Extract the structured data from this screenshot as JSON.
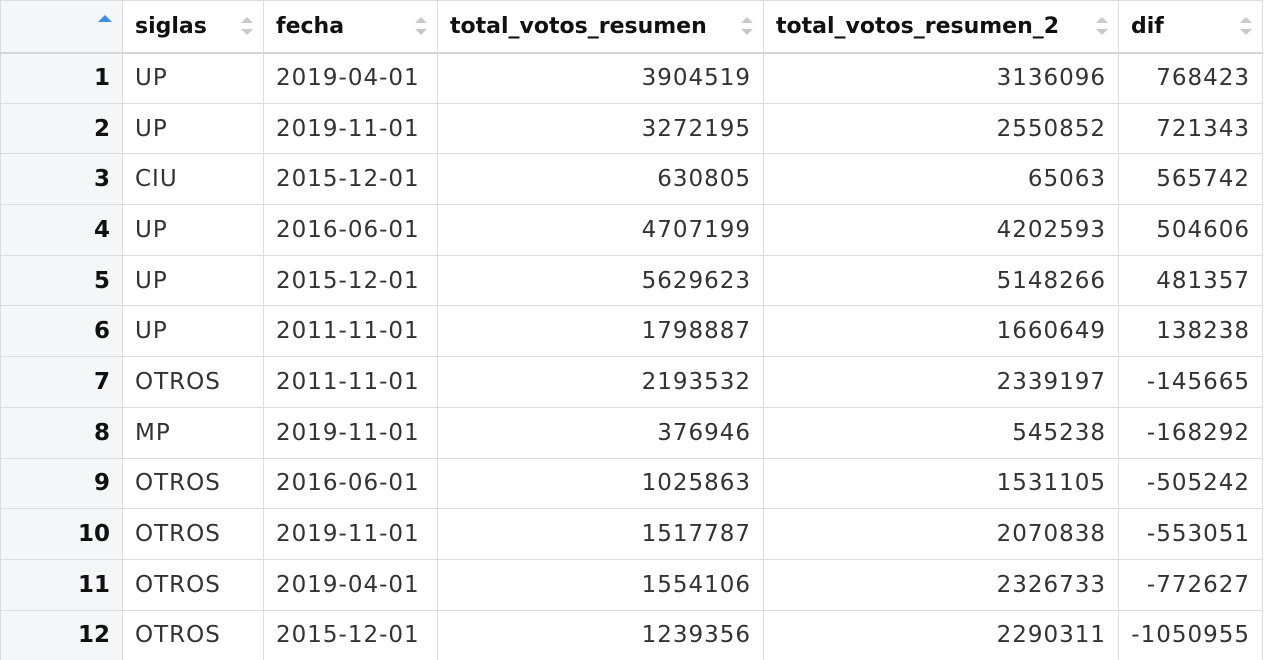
{
  "table": {
    "columns": [
      {
        "key": "rowname",
        "label": ""
      },
      {
        "key": "siglas",
        "label": "siglas"
      },
      {
        "key": "fecha",
        "label": "fecha"
      },
      {
        "key": "total_votos_resumen",
        "label": "total_votos_resumen"
      },
      {
        "key": "total_votos_resumen_2",
        "label": "total_votos_resumen_2"
      },
      {
        "key": "dif",
        "label": "dif"
      }
    ],
    "rows": [
      {
        "rowname": "1",
        "siglas": "UP",
        "fecha": "2019-04-01",
        "total_votos_resumen": "3904519",
        "total_votos_resumen_2": "3136096",
        "dif": "768423"
      },
      {
        "rowname": "2",
        "siglas": "UP",
        "fecha": "2019-11-01",
        "total_votos_resumen": "3272195",
        "total_votos_resumen_2": "2550852",
        "dif": "721343"
      },
      {
        "rowname": "3",
        "siglas": "CIU",
        "fecha": "2015-12-01",
        "total_votos_resumen": "630805",
        "total_votos_resumen_2": "65063",
        "dif": "565742"
      },
      {
        "rowname": "4",
        "siglas": "UP",
        "fecha": "2016-06-01",
        "total_votos_resumen": "4707199",
        "total_votos_resumen_2": "4202593",
        "dif": "504606"
      },
      {
        "rowname": "5",
        "siglas": "UP",
        "fecha": "2015-12-01",
        "total_votos_resumen": "5629623",
        "total_votos_resumen_2": "5148266",
        "dif": "481357"
      },
      {
        "rowname": "6",
        "siglas": "UP",
        "fecha": "2011-11-01",
        "total_votos_resumen": "1798887",
        "total_votos_resumen_2": "1660649",
        "dif": "138238"
      },
      {
        "rowname": "7",
        "siglas": "OTROS",
        "fecha": "2011-11-01",
        "total_votos_resumen": "2193532",
        "total_votos_resumen_2": "2339197",
        "dif": "-145665"
      },
      {
        "rowname": "8",
        "siglas": "MP",
        "fecha": "2019-11-01",
        "total_votos_resumen": "376946",
        "total_votos_resumen_2": "545238",
        "dif": "-168292"
      },
      {
        "rowname": "9",
        "siglas": "OTROS",
        "fecha": "2016-06-01",
        "total_votos_resumen": "1025863",
        "total_votos_resumen_2": "1531105",
        "dif": "-505242"
      },
      {
        "rowname": "10",
        "siglas": "OTROS",
        "fecha": "2019-11-01",
        "total_votos_resumen": "1517787",
        "total_votos_resumen_2": "2070838",
        "dif": "-553051"
      },
      {
        "rowname": "11",
        "siglas": "OTROS",
        "fecha": "2019-04-01",
        "total_votos_resumen": "1554106",
        "total_votos_resumen_2": "2326733",
        "dif": "-772627"
      },
      {
        "rowname": "12",
        "siglas": "OTROS",
        "fecha": "2015-12-01",
        "total_votos_resumen": "1239356",
        "total_votos_resumen_2": "2290311",
        "dif": "-1050955"
      }
    ]
  },
  "colors": {
    "sort_active": "#3d8fdd",
    "sort_inactive": "#c9c9c9",
    "rowname_bg": "#f4f6f8",
    "grid_line": "#dcdcdc"
  },
  "icons": {
    "active_sort": "sort-ascending-icon",
    "inactive_sort": "sort-both-icon"
  }
}
